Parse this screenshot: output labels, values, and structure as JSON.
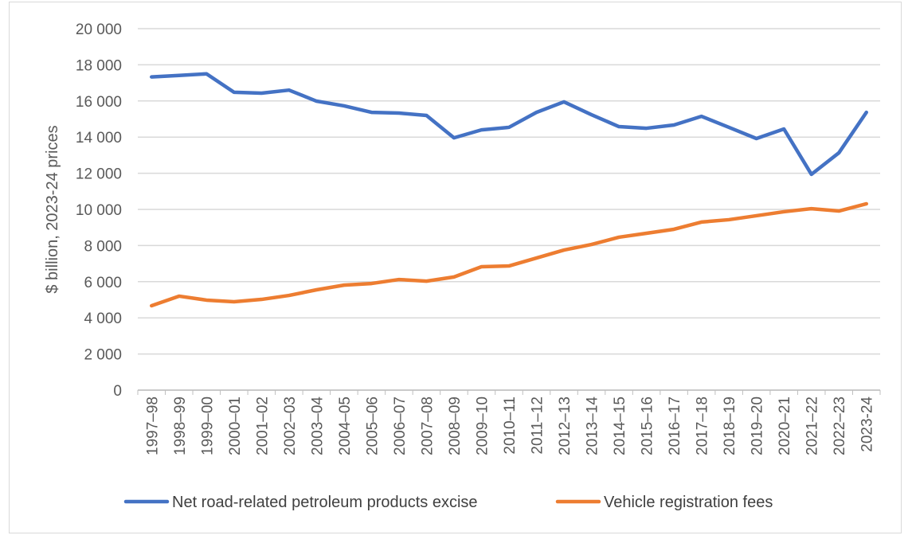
{
  "chart_data": {
    "type": "line",
    "title": "",
    "xlabel": "",
    "ylabel": "$ billion, 2023-24 prices",
    "ylim": [
      0,
      20000
    ],
    "yticks": [
      0,
      2000,
      4000,
      6000,
      8000,
      10000,
      12000,
      14000,
      16000,
      18000,
      20000
    ],
    "ytick_labels": [
      "0",
      "2 000",
      "4 000",
      "6 000",
      "8 000",
      "10 000",
      "12 000",
      "14 000",
      "16 000",
      "18 000",
      "20 000"
    ],
    "grid": true,
    "legend": "bottom",
    "categories": [
      "1997–98",
      "1998–99",
      "1999–00",
      "2000–01",
      "2001–02",
      "2002–03",
      "2003–04",
      "2004–05",
      "2005–06",
      "2006–07",
      "2007–08",
      "2008–09",
      "2009–10",
      "2010–11",
      "2011–12",
      "2012–13",
      "2013–14",
      "2014–15",
      "2015–16",
      "2016–17",
      "2017–18",
      "2018–19",
      "2019–20",
      "2020–21",
      "2021–22",
      "2022–23",
      "2023-24"
    ],
    "series": [
      {
        "name": "Net road-related petroleum products excise",
        "color": "#4472c4",
        "values": [
          17330,
          17410,
          17500,
          16480,
          16430,
          16600,
          15990,
          15730,
          15370,
          15330,
          15200,
          13960,
          14400,
          14540,
          15370,
          15950,
          15240,
          14580,
          14490,
          14670,
          15150,
          14540,
          13920,
          14450,
          11940,
          13130,
          15370
        ]
      },
      {
        "name": "Vehicle registration fees",
        "color": "#ed7d31",
        "values": [
          4670,
          5200,
          4980,
          4890,
          5020,
          5240,
          5550,
          5810,
          5900,
          6120,
          6030,
          6260,
          6830,
          6870,
          7310,
          7750,
          8060,
          8460,
          8680,
          8900,
          9300,
          9430,
          9650,
          9870,
          10040,
          9910,
          10310
        ]
      }
    ]
  }
}
